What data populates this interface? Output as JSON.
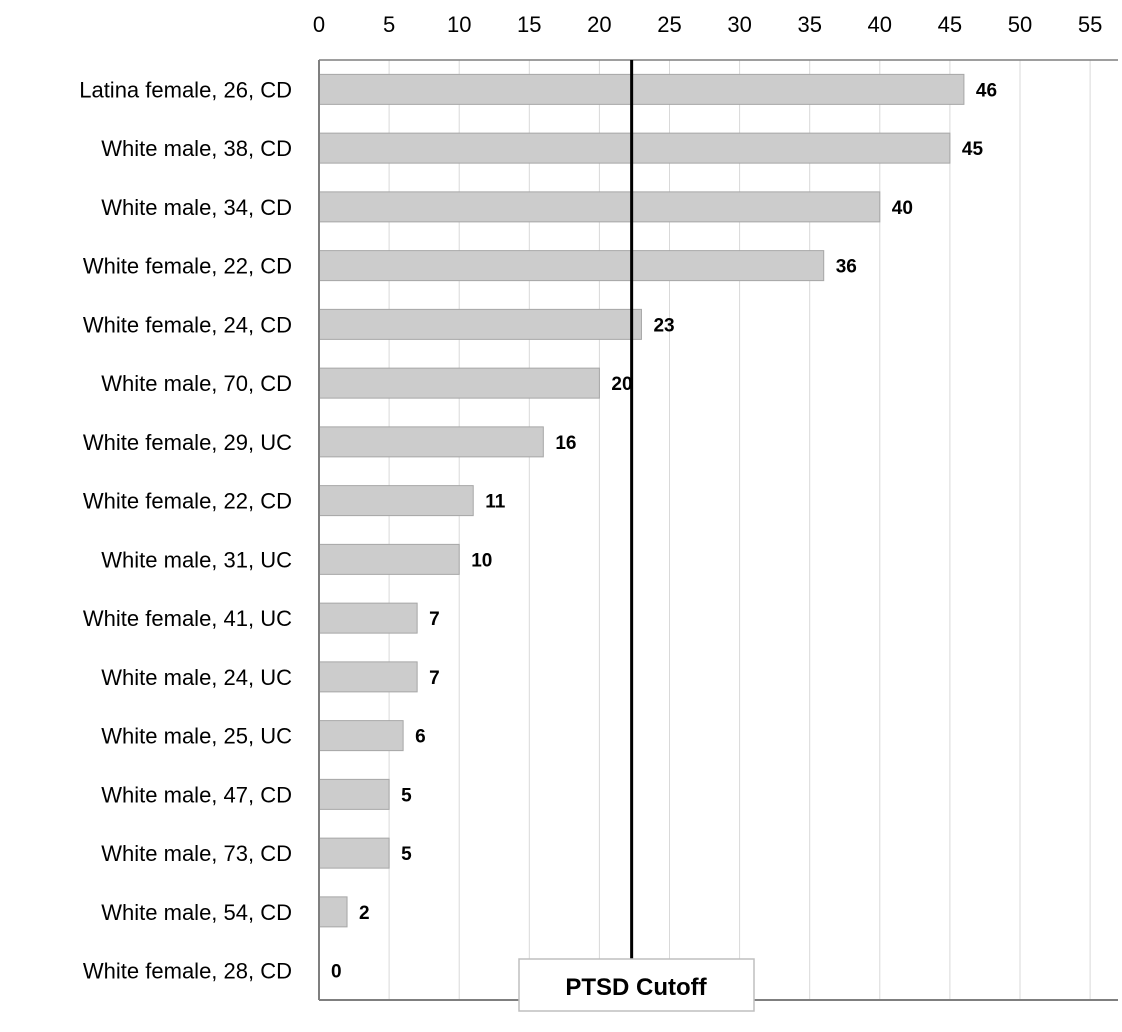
{
  "chart_data": {
    "type": "bar",
    "orientation": "horizontal",
    "title": "",
    "xlabel": "",
    "ylabel": "",
    "xlim": [
      0,
      57
    ],
    "x_ticks": [
      0,
      5,
      10,
      15,
      20,
      25,
      30,
      35,
      40,
      45,
      50,
      55
    ],
    "x_axis_position": "top",
    "grid": "vertical",
    "bar_color": "#cccccc",
    "categories": [
      "Latina female, 26, CD",
      "White male, 38, CD",
      "White male, 34, CD",
      "White female, 22, CD",
      "White female, 24, CD",
      "White male, 70, CD",
      "White female, 29, UC",
      "White female, 22, CD",
      "White male, 31, UC",
      "White female, 41, UC",
      "White male, 24, UC",
      "White male, 25, UC",
      "White male, 47, CD",
      "White male, 73, CD",
      "White male, 54, CD",
      "White female, 28, CD"
    ],
    "values": [
      46,
      45,
      40,
      36,
      23,
      20,
      16,
      11,
      10,
      7,
      7,
      6,
      5,
      5,
      2,
      0
    ],
    "reference_line": {
      "label": "PTSD Cutoff",
      "value": 22.3,
      "color": "#000000"
    }
  }
}
